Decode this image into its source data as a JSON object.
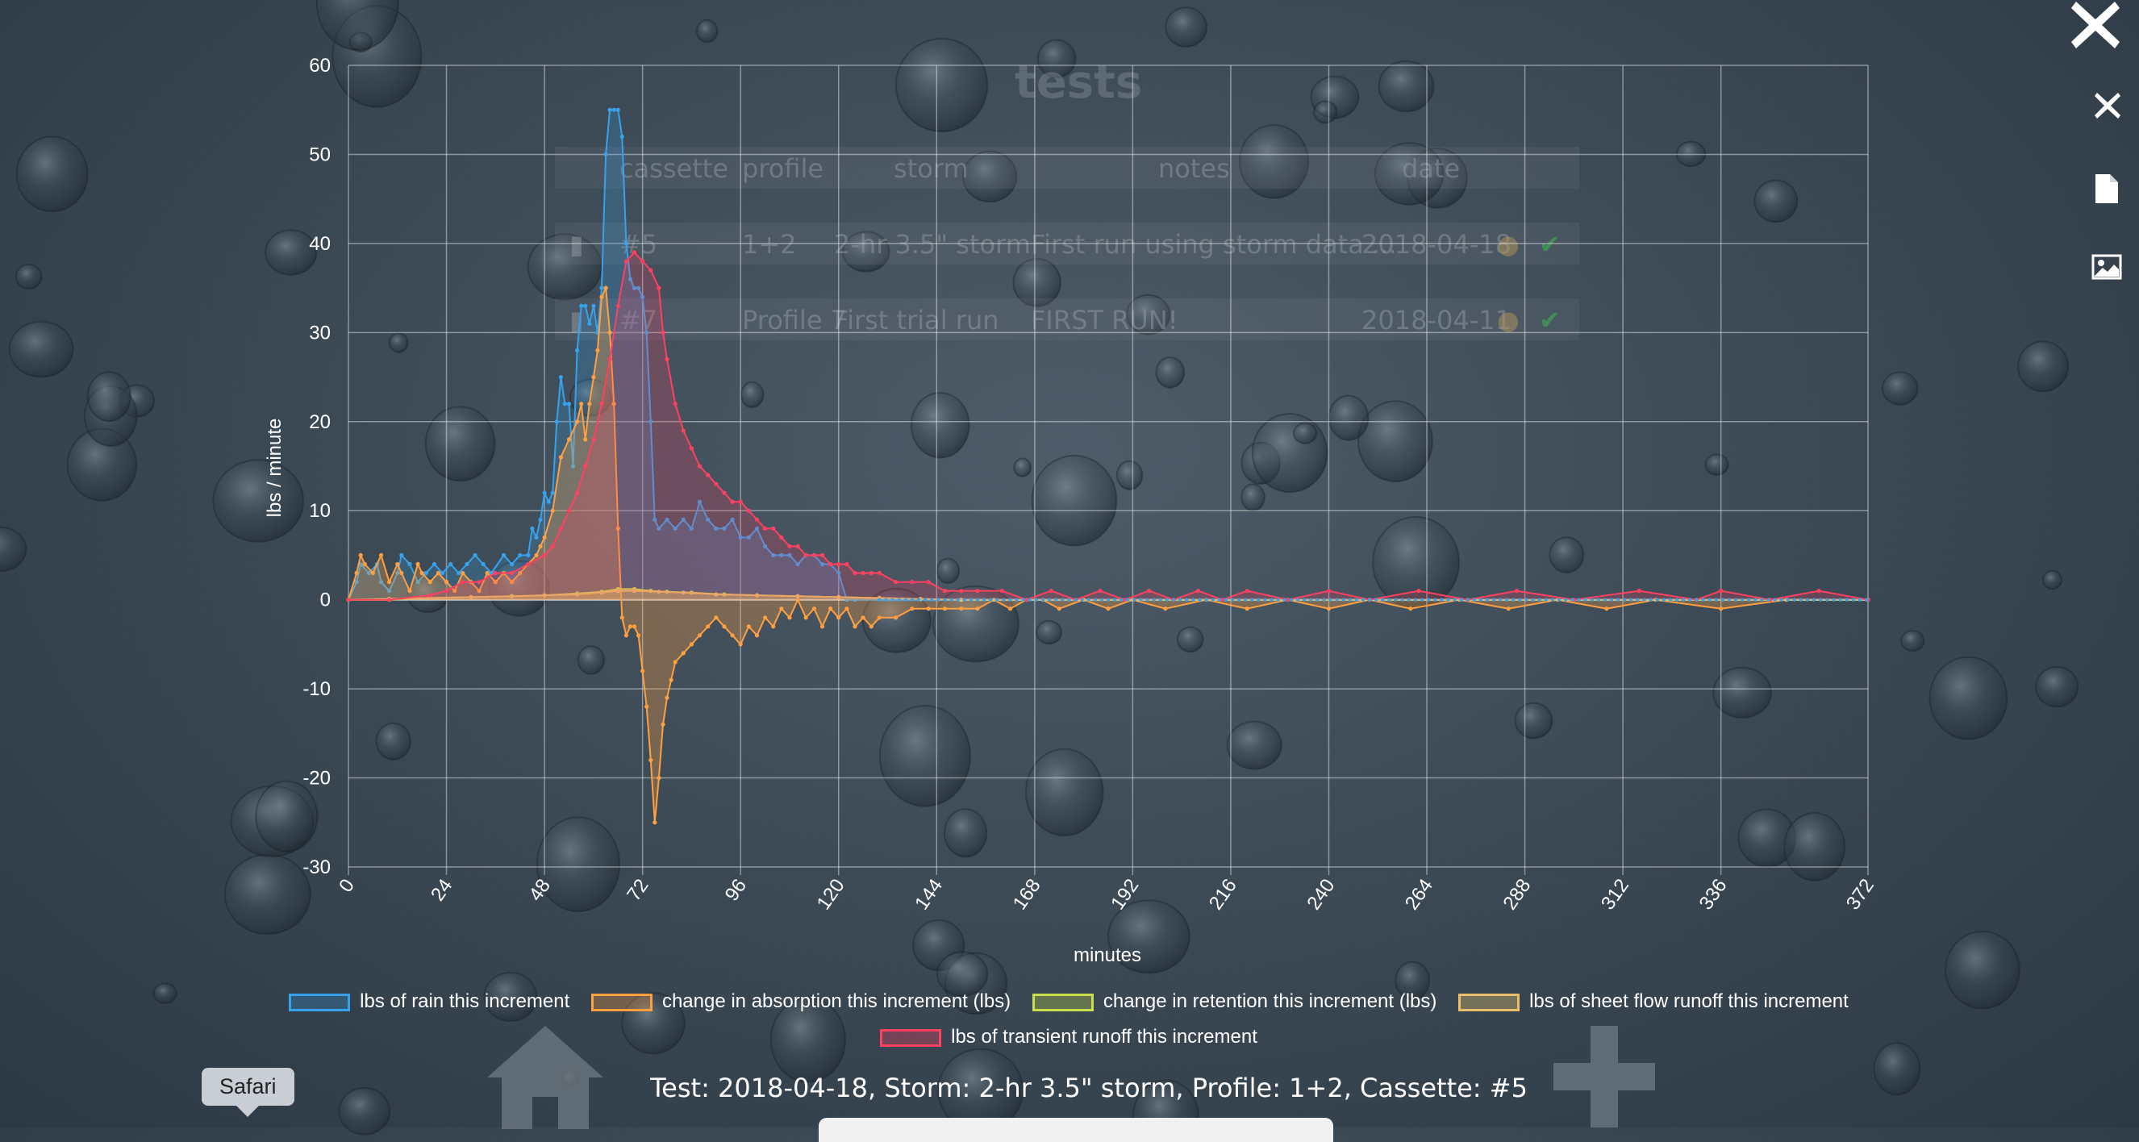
{
  "background_table": {
    "title": "tests",
    "headers": [
      "cassette",
      "profile",
      "storm",
      "notes",
      "date"
    ],
    "rows": [
      {
        "cassette": "#5",
        "profile": "1+2",
        "storm": "2-hr 3.5\" storm",
        "notes": "First run using storm data ...",
        "date": "2018-04-18"
      },
      {
        "cassette": "#7",
        "profile": "Profile 7",
        "storm": "First trial run",
        "notes": "FIRST RUN!",
        "date": "2018-04-11"
      }
    ]
  },
  "caption": "Test: 2018-04-18, Storm: 2-hr 3.5\" storm, Profile: 1+2, Cassette: #5",
  "tooltip": "Safari",
  "icons": {
    "close_large": "close-icon",
    "close_small": "close-icon",
    "file": "file-icon",
    "image": "image-icon",
    "home": "home-icon",
    "add": "plus-icon"
  },
  "colors": {
    "rain": "#36a2eb",
    "absorption": "#ff9f40",
    "retention": "#c9de4c",
    "sheet_flow": "#e8c06a",
    "transient": "#ff4060"
  },
  "chart_data": {
    "type": "line",
    "xlabel": "minutes",
    "ylabel": "lbs / minute",
    "ylim": [
      -30,
      60
    ],
    "yticks": [
      60,
      50,
      40,
      30,
      20,
      10,
      0,
      -10,
      -20,
      -30
    ],
    "xlim": [
      0,
      372
    ],
    "xticks": [
      0,
      24,
      48,
      72,
      96,
      120,
      144,
      168,
      192,
      216,
      240,
      264,
      288,
      312,
      336,
      372
    ],
    "grid": true,
    "legend_position": "bottom",
    "series": [
      {
        "name": "lbs of rain this increment",
        "color": "#36a2eb",
        "fill": "rgba(54,162,235,0.22)",
        "points": [
          [
            0,
            0
          ],
          [
            2,
            2
          ],
          [
            3,
            4
          ],
          [
            5,
            3
          ],
          [
            7,
            4
          ],
          [
            8,
            2
          ],
          [
            10,
            1
          ],
          [
            12,
            3
          ],
          [
            13,
            5
          ],
          [
            15,
            4
          ],
          [
            17,
            2
          ],
          [
            19,
            3
          ],
          [
            21,
            4
          ],
          [
            23,
            3
          ],
          [
            25,
            4
          ],
          [
            27,
            3
          ],
          [
            29,
            4
          ],
          [
            31,
            5
          ],
          [
            33,
            4
          ],
          [
            35,
            3
          ],
          [
            38,
            5
          ],
          [
            40,
            4
          ],
          [
            42,
            5
          ],
          [
            44,
            5
          ],
          [
            45,
            8
          ],
          [
            46,
            7
          ],
          [
            47,
            9
          ],
          [
            48,
            12
          ],
          [
            49,
            11
          ],
          [
            50,
            12
          ],
          [
            51,
            20
          ],
          [
            52,
            25
          ],
          [
            53,
            22
          ],
          [
            54,
            22
          ],
          [
            55,
            15
          ],
          [
            56,
            28
          ],
          [
            57,
            33
          ],
          [
            58,
            33
          ],
          [
            59,
            31
          ],
          [
            60,
            33
          ],
          [
            61,
            30
          ],
          [
            62,
            35
          ],
          [
            63,
            50
          ],
          [
            64,
            55
          ],
          [
            65,
            55
          ],
          [
            66,
            55
          ],
          [
            67,
            52
          ],
          [
            68,
            40
          ],
          [
            69,
            36
          ],
          [
            70,
            35
          ],
          [
            71,
            35
          ],
          [
            72,
            34
          ],
          [
            73,
            30
          ],
          [
            74,
            20
          ],
          [
            75,
            9
          ],
          [
            76,
            8
          ],
          [
            78,
            9
          ],
          [
            80,
            8
          ],
          [
            82,
            9
          ],
          [
            84,
            8
          ],
          [
            86,
            11
          ],
          [
            88,
            9
          ],
          [
            90,
            8
          ],
          [
            92,
            8
          ],
          [
            94,
            9
          ],
          [
            96,
            7
          ],
          [
            98,
            7
          ],
          [
            100,
            8
          ],
          [
            102,
            6
          ],
          [
            104,
            5
          ],
          [
            106,
            5
          ],
          [
            108,
            5
          ],
          [
            110,
            4
          ],
          [
            112,
            5
          ],
          [
            114,
            5
          ],
          [
            116,
            4
          ],
          [
            118,
            4
          ],
          [
            120,
            3
          ],
          [
            122,
            0
          ],
          [
            124,
            0
          ],
          [
            372,
            0
          ]
        ]
      },
      {
        "name": "change in absorption this increment (lbs)",
        "color": "#ff9f40",
        "fill": "rgba(255,159,64,0.30)",
        "points": [
          [
            0,
            0
          ],
          [
            2,
            3
          ],
          [
            3,
            5
          ],
          [
            4,
            4
          ],
          [
            6,
            3
          ],
          [
            8,
            5
          ],
          [
            10,
            2
          ],
          [
            12,
            4
          ],
          [
            13,
            3
          ],
          [
            15,
            1
          ],
          [
            17,
            4
          ],
          [
            18,
            3
          ],
          [
            20,
            2
          ],
          [
            22,
            3
          ],
          [
            24,
            2
          ],
          [
            26,
            1
          ],
          [
            28,
            3
          ],
          [
            30,
            2
          ],
          [
            32,
            1
          ],
          [
            34,
            3
          ],
          [
            36,
            2
          ],
          [
            38,
            3
          ],
          [
            40,
            2
          ],
          [
            42,
            3
          ],
          [
            44,
            4
          ],
          [
            46,
            5
          ],
          [
            47,
            6
          ],
          [
            48,
            7
          ],
          [
            50,
            10
          ],
          [
            52,
            16
          ],
          [
            54,
            18
          ],
          [
            56,
            20
          ],
          [
            57,
            22
          ],
          [
            58,
            18
          ],
          [
            59,
            22
          ],
          [
            60,
            25
          ],
          [
            61,
            28
          ],
          [
            62,
            34
          ],
          [
            63,
            35
          ],
          [
            64,
            30
          ],
          [
            65,
            22
          ],
          [
            66,
            8
          ],
          [
            67,
            -2
          ],
          [
            68,
            -4
          ],
          [
            69,
            -3
          ],
          [
            70,
            -3
          ],
          [
            71,
            -4
          ],
          [
            72,
            -8
          ],
          [
            73,
            -12
          ],
          [
            74,
            -18
          ],
          [
            75,
            -25
          ],
          [
            76,
            -20
          ],
          [
            77,
            -14
          ],
          [
            78,
            -11
          ],
          [
            79,
            -9
          ],
          [
            80,
            -7
          ],
          [
            82,
            -6
          ],
          [
            84,
            -5
          ],
          [
            86,
            -4
          ],
          [
            88,
            -3
          ],
          [
            90,
            -2
          ],
          [
            92,
            -3
          ],
          [
            94,
            -4
          ],
          [
            96,
            -5
          ],
          [
            98,
            -3
          ],
          [
            100,
            -4
          ],
          [
            102,
            -2
          ],
          [
            104,
            -3
          ],
          [
            106,
            -1
          ],
          [
            108,
            -2
          ],
          [
            110,
            0
          ],
          [
            112,
            -2
          ],
          [
            114,
            -1
          ],
          [
            116,
            -3
          ],
          [
            118,
            -1
          ],
          [
            120,
            -2
          ],
          [
            122,
            -1
          ],
          [
            124,
            -3
          ],
          [
            126,
            -2
          ],
          [
            128,
            -3
          ],
          [
            130,
            -2
          ],
          [
            134,
            -2
          ],
          [
            138,
            -1
          ],
          [
            142,
            -1
          ],
          [
            146,
            -1
          ],
          [
            150,
            -1
          ],
          [
            154,
            -1
          ],
          [
            158,
            0
          ],
          [
            162,
            -1
          ],
          [
            166,
            0
          ],
          [
            170,
            0
          ],
          [
            174,
            -1
          ],
          [
            180,
            0
          ],
          [
            186,
            -1
          ],
          [
            192,
            0
          ],
          [
            200,
            -1
          ],
          [
            210,
            0
          ],
          [
            220,
            -1
          ],
          [
            230,
            0
          ],
          [
            240,
            -1
          ],
          [
            250,
            0
          ],
          [
            260,
            -1
          ],
          [
            272,
            0
          ],
          [
            284,
            -1
          ],
          [
            296,
            0
          ],
          [
            308,
            -1
          ],
          [
            320,
            0
          ],
          [
            336,
            -1
          ],
          [
            352,
            0
          ],
          [
            372,
            0
          ]
        ]
      },
      {
        "name": "change in retention this increment (lbs)",
        "color": "#c9de4c",
        "fill": "rgba(201,222,76,0.25)",
        "points": [
          [
            0,
            0
          ],
          [
            10,
            0
          ],
          [
            20,
            0.2
          ],
          [
            30,
            0.3
          ],
          [
            40,
            0.4
          ],
          [
            48,
            0.5
          ],
          [
            56,
            0.7
          ],
          [
            62,
            0.9
          ],
          [
            66,
            1.2
          ],
          [
            70,
            1.2
          ],
          [
            74,
            1.0
          ],
          [
            78,
            0.9
          ],
          [
            84,
            0.8
          ],
          [
            92,
            0.6
          ],
          [
            100,
            0.5
          ],
          [
            110,
            0.4
          ],
          [
            120,
            0.3
          ],
          [
            130,
            0.2
          ],
          [
            140,
            0.1
          ],
          [
            150,
            0
          ],
          [
            372,
            0
          ]
        ]
      },
      {
        "name": "lbs of sheet flow runoff this increment",
        "color": "#e8c06a",
        "fill": "rgba(232,192,106,0.35)",
        "points": [
          [
            0,
            0
          ],
          [
            10,
            0.1
          ],
          [
            20,
            0.2
          ],
          [
            30,
            0.3
          ],
          [
            40,
            0.4
          ],
          [
            48,
            0.5
          ],
          [
            56,
            0.6
          ],
          [
            62,
            0.8
          ],
          [
            66,
            1.0
          ],
          [
            70,
            1.0
          ],
          [
            76,
            0.9
          ],
          [
            82,
            0.8
          ],
          [
            90,
            0.6
          ],
          [
            100,
            0.5
          ],
          [
            110,
            0.4
          ],
          [
            120,
            0.3
          ],
          [
            130,
            0.2
          ],
          [
            140,
            0.1
          ],
          [
            150,
            0
          ],
          [
            372,
            0
          ]
        ]
      },
      {
        "name": "lbs of transient runoff this increment",
        "color": "#ff4060",
        "fill": "rgba(255,64,96,0.22)",
        "points": [
          [
            0,
            0
          ],
          [
            10,
            0
          ],
          [
            20,
            0.5
          ],
          [
            24,
            1
          ],
          [
            28,
            2
          ],
          [
            32,
            2
          ],
          [
            36,
            3
          ],
          [
            40,
            3
          ],
          [
            44,
            4
          ],
          [
            48,
            5
          ],
          [
            50,
            6
          ],
          [
            52,
            8
          ],
          [
            54,
            10
          ],
          [
            56,
            12
          ],
          [
            58,
            15
          ],
          [
            60,
            18
          ],
          [
            62,
            22
          ],
          [
            64,
            27
          ],
          [
            66,
            33
          ],
          [
            68,
            38
          ],
          [
            70,
            39
          ],
          [
            72,
            38
          ],
          [
            74,
            37
          ],
          [
            76,
            35
          ],
          [
            77,
            30
          ],
          [
            78,
            27
          ],
          [
            80,
            22
          ],
          [
            82,
            19
          ],
          [
            84,
            17
          ],
          [
            86,
            15
          ],
          [
            88,
            14
          ],
          [
            90,
            13
          ],
          [
            92,
            12
          ],
          [
            94,
            11
          ],
          [
            96,
            11
          ],
          [
            98,
            10
          ],
          [
            100,
            9
          ],
          [
            102,
            8
          ],
          [
            104,
            8
          ],
          [
            106,
            7
          ],
          [
            108,
            6
          ],
          [
            110,
            6
          ],
          [
            112,
            5
          ],
          [
            114,
            5
          ],
          [
            116,
            5
          ],
          [
            118,
            4
          ],
          [
            120,
            4
          ],
          [
            122,
            4
          ],
          [
            124,
            3
          ],
          [
            126,
            3
          ],
          [
            128,
            3
          ],
          [
            130,
            3
          ],
          [
            134,
            2
          ],
          [
            138,
            2
          ],
          [
            142,
            2
          ],
          [
            146,
            1
          ],
          [
            150,
            1
          ],
          [
            154,
            1
          ],
          [
            160,
            1
          ],
          [
            166,
            0
          ],
          [
            172,
            1
          ],
          [
            178,
            0
          ],
          [
            184,
            1
          ],
          [
            190,
            0
          ],
          [
            196,
            1
          ],
          [
            202,
            0
          ],
          [
            208,
            1
          ],
          [
            214,
            0
          ],
          [
            220,
            1
          ],
          [
            230,
            0
          ],
          [
            240,
            1
          ],
          [
            250,
            0
          ],
          [
            262,
            1
          ],
          [
            274,
            0
          ],
          [
            286,
            1
          ],
          [
            300,
            0
          ],
          [
            316,
            1
          ],
          [
            330,
            0
          ],
          [
            336,
            1
          ],
          [
            348,
            0
          ],
          [
            360,
            1
          ],
          [
            372,
            0
          ]
        ]
      }
    ]
  }
}
